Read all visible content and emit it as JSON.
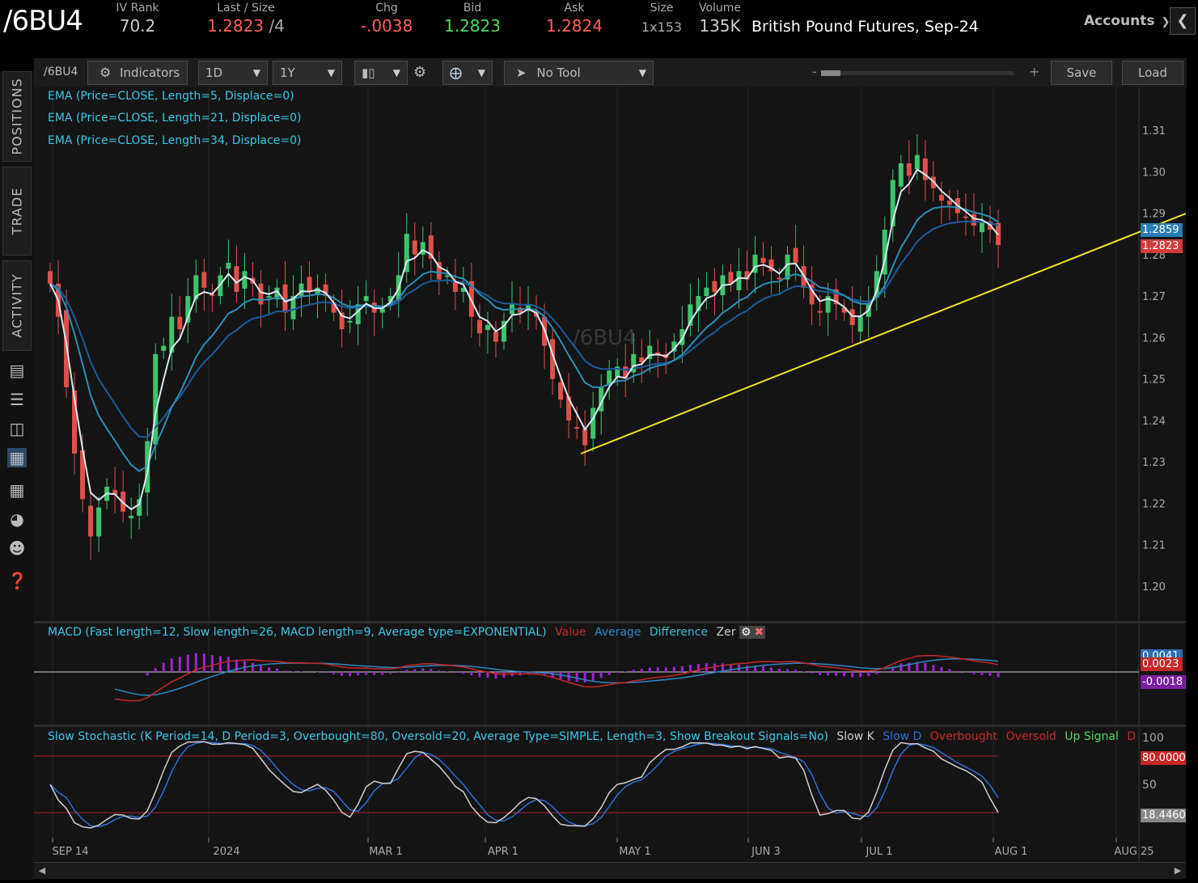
{
  "header": {
    "symbol": "/6BU4",
    "product_name": "British Pound Futures, Sep-24",
    "accounts_label": "Accounts",
    "stats": [
      {
        "label": "IV Rank",
        "value": "70.2",
        "color": "#cccccc"
      },
      {
        "label": "Last / Size",
        "value": "1.2823",
        "value2": "/4",
        "color": "#ff5e5e"
      },
      {
        "label": "Chg",
        "value": "-.0038",
        "color": "#ff5e5e"
      },
      {
        "label": "Bid",
        "value": "1.2823",
        "color": "#4cd964"
      },
      {
        "label": "Ask",
        "value": "1.2824",
        "color": "#ff5e5e"
      },
      {
        "label": "Size",
        "value": "1x153",
        "color": "#aaaaaa"
      },
      {
        "label": "Volume",
        "value": "135K",
        "color": "#cccccc"
      }
    ]
  },
  "rail": {
    "tabs": [
      "POSITIONS",
      "TRADE",
      "ACTIVITY"
    ],
    "icons": [
      "news-icon",
      "list-icon",
      "tv-icon",
      "chart-icon",
      "grid-icon",
      "gauge-icon",
      "people-icon",
      "help-icon"
    ]
  },
  "toolbar": {
    "symbol": "/6BU4",
    "indicators_label": "Indicators",
    "aggregation": "1D",
    "timeframe": "1Y",
    "tool": "No Tool",
    "save_label": "Save",
    "load_label": "Load",
    "zoom_minus": "-",
    "zoom_plus": "+"
  },
  "price_pane": {
    "watermark": "/6BU4",
    "legends": [
      "EMA (Price=CLOSE, Length=5, Displace=0)",
      "EMA (Price=CLOSE, Length=21, Displace=0)",
      "EMA (Price=CLOSE, Length=34, Displace=0)"
    ],
    "price_labels": [
      {
        "value": "1.2859",
        "bg": "#2a7db3"
      },
      {
        "value": "1.2823",
        "bg": "#d33b3b"
      }
    ]
  },
  "macd_pane": {
    "legend_main": "MACD (Fast length=12, Slow length=26, MACD length=9, Average type=EXPONENTIAL)",
    "legend_items": [
      {
        "text": "Value",
        "color": "#c62828"
      },
      {
        "text": "Average",
        "color": "#2e86c1"
      },
      {
        "text": "Difference",
        "color": "#38bdd6"
      },
      {
        "text": "Zer",
        "color": "#cccccc"
      }
    ],
    "labels": [
      {
        "value": "0.0041",
        "bg": "#2a6fb3"
      },
      {
        "value": "0.0023",
        "bg": "#c62828"
      },
      {
        "value": "-0.0018",
        "bg": "#7b1fa2"
      }
    ]
  },
  "stoch_pane": {
    "legend_main": "Slow Stochastic (K Period=14, D Period=3, Overbought=80, Oversold=20, Average Type=SIMPLE, Length=3, Show Breakout Signals=No)",
    "legend_items": [
      {
        "text": "Slow K",
        "color": "#cccccc"
      },
      {
        "text": "Slow D",
        "color": "#2e6fd6"
      },
      {
        "text": "Overbought",
        "color": "#c62828"
      },
      {
        "text": "Oversold",
        "color": "#c62828"
      },
      {
        "text": "Up Signal",
        "color": "#4cd964"
      },
      {
        "text": "D",
        "color": "#c62828"
      }
    ],
    "labels": [
      {
        "value": "100",
        "bg": ""
      },
      {
        "value": "80.0000",
        "bg": "#c62828"
      },
      {
        "value": "50",
        "bg": ""
      },
      {
        "value": "18.4460",
        "bg": "#888888"
      }
    ]
  },
  "chart_data": {
    "type": "candlestick",
    "y_ticks": [
      "1.31",
      "1.30",
      "1.29",
      "1.28",
      "1.27",
      "1.26",
      "1.25",
      "1.24",
      "1.23",
      "1.22",
      "1.21",
      "1.20"
    ],
    "ylim": [
      1.195,
      1.315
    ],
    "x_ticks": [
      "SEP 14",
      "2024",
      "MAR 1",
      "APR 1",
      "MAY 1",
      "JUN 3",
      "JUL 1",
      "AUG 1",
      "AUG 25"
    ],
    "closes": [
      1.273,
      1.265,
      1.248,
      1.232,
      1.221,
      1.212,
      1.219,
      1.224,
      1.222,
      1.218,
      1.217,
      1.221,
      1.235,
      1.256,
      1.258,
      1.265,
      1.262,
      1.27,
      1.275,
      1.272,
      1.27,
      1.275,
      1.278,
      1.271,
      1.276,
      1.273,
      1.268,
      1.27,
      1.272,
      1.266,
      1.27,
      1.273,
      1.271,
      1.272,
      1.27,
      1.266,
      1.262,
      1.264,
      1.268,
      1.27,
      1.266,
      1.267,
      1.27,
      1.275,
      1.285,
      1.28,
      1.283,
      1.279,
      1.274,
      1.275,
      1.271,
      1.272,
      1.265,
      1.261,
      1.263,
      1.259,
      1.264,
      1.268,
      1.266,
      1.268,
      1.265,
      1.258,
      1.25,
      1.245,
      1.24,
      1.238,
      1.234,
      1.243,
      1.248,
      1.252,
      1.253,
      1.25,
      1.256,
      1.254,
      1.258,
      1.256,
      1.255,
      1.259,
      1.262,
      1.268,
      1.27,
      1.272,
      1.271,
      1.275,
      1.273,
      1.276,
      1.274,
      1.28,
      1.278,
      1.276,
      1.274,
      1.28,
      1.278,
      1.272,
      1.268,
      1.266,
      1.27,
      1.268,
      1.266,
      1.263,
      1.265,
      1.268,
      1.276,
      1.286,
      1.298,
      1.302,
      1.299,
      1.304,
      1.298,
      1.296,
      1.293,
      1.292,
      1.29,
      1.289,
      1.287,
      1.288,
      1.286,
      1.2823
    ]
  }
}
